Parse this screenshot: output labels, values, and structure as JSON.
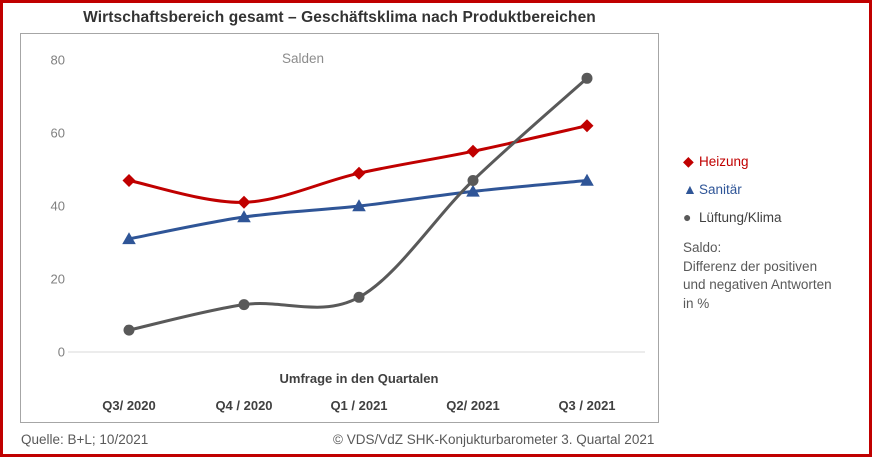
{
  "card": {
    "title": "Wirtschaftsbereich gesamt – Geschäftsklima nach Produktbereichen",
    "accent_color": "#c00000"
  },
  "chart_data": {
    "type": "line",
    "inner_title": "Salden",
    "xlabel": "Umfrage in den Quartalen",
    "categories": [
      "Q3/ 2020",
      "Q4 / 2020",
      "Q1 / 2021",
      "Q2/ 2021",
      "Q3 / 2021"
    ],
    "series": [
      {
        "id": "heizung",
        "name": "Heizung",
        "color": "#c00000",
        "label_color": "#c00000",
        "marker": "diamond",
        "values": [
          47,
          41,
          49,
          55,
          62
        ]
      },
      {
        "id": "sanitaer",
        "name": "Sanitär",
        "color": "#2f5597",
        "label_color": "#2f5597",
        "marker": "triangle",
        "values": [
          31,
          37,
          40,
          44,
          47
        ]
      },
      {
        "id": "lueftung-klima",
        "name": "Lüftung/Klima",
        "color": "#595959",
        "label_color": "#404040",
        "marker": "circle",
        "values": [
          6,
          13,
          15,
          47,
          75
        ]
      }
    ],
    "y_ticks": [
      0,
      20,
      40,
      60,
      80
    ],
    "ylim": [
      0,
      87
    ],
    "grid": false,
    "zero_line": true,
    "legend_position": "right",
    "axis_text_color": "#808080",
    "tick_label_color": "#404040"
  },
  "legend_note": "Saldo:\nDifferenz der positiven\nund negativen Antworten\nin %",
  "footer": {
    "source": "Quelle: B+L; 10/2021",
    "copyright": "© VDS/VdZ SHK-Konjukturbarometer 3. Quartal 2021"
  }
}
